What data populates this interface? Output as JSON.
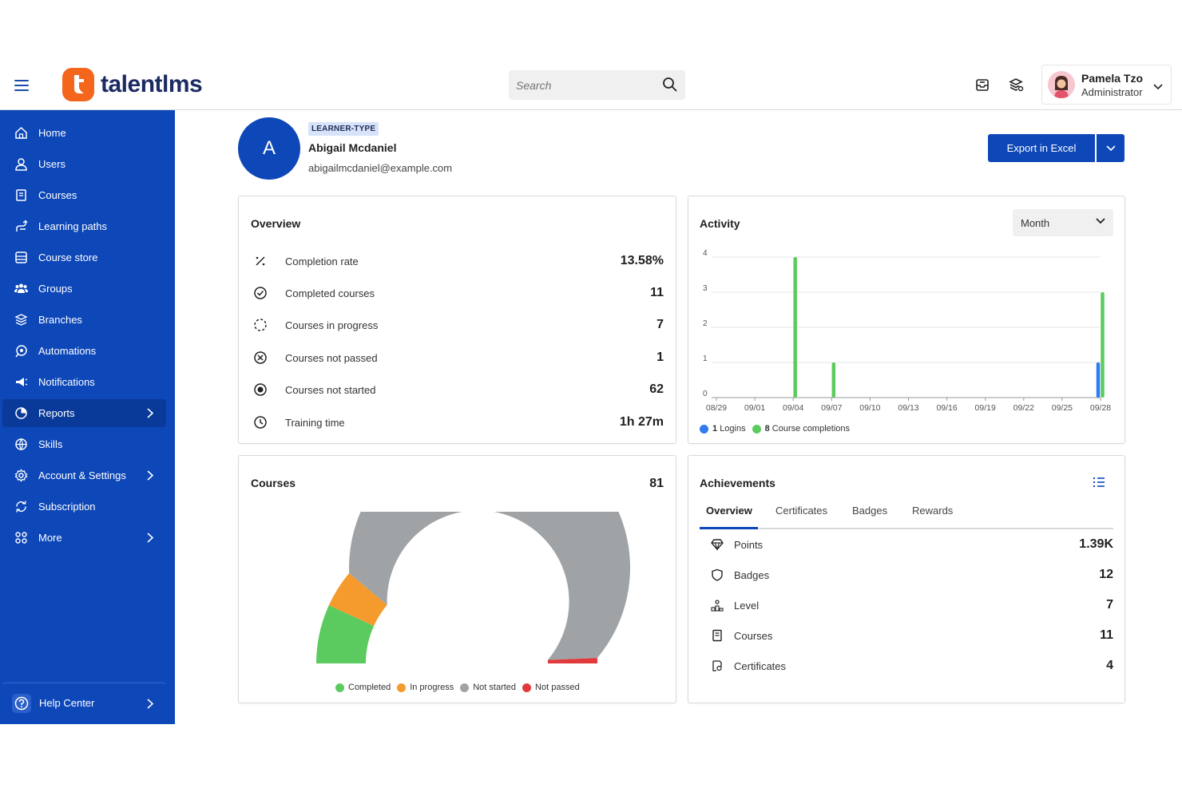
{
  "brand": {
    "name": "talentlms",
    "accent": "#0d47b8",
    "logo_color": "#f4661b"
  },
  "search": {
    "placeholder": "Search"
  },
  "user": {
    "name": "Pamela Tzo",
    "role": "Administrator"
  },
  "sidebar": {
    "items": [
      {
        "label": "Home",
        "icon": "home-icon"
      },
      {
        "label": "Users",
        "icon": "user-icon"
      },
      {
        "label": "Courses",
        "icon": "book-icon"
      },
      {
        "label": "Learning paths",
        "icon": "path-icon"
      },
      {
        "label": "Course store",
        "icon": "store-icon"
      },
      {
        "label": "Groups",
        "icon": "group-icon"
      },
      {
        "label": "Branches",
        "icon": "layers-icon"
      },
      {
        "label": "Automations",
        "icon": "automation-icon"
      },
      {
        "label": "Notifications",
        "icon": "megaphone-icon"
      },
      {
        "label": "Reports",
        "icon": "pie-chart-icon",
        "active": true,
        "has_children": true
      },
      {
        "label": "Skills",
        "icon": "skills-icon"
      },
      {
        "label": "Account & Settings",
        "icon": "gear-icon",
        "has_children": true
      },
      {
        "label": "Subscription",
        "icon": "subscription-icon"
      },
      {
        "label": "More",
        "icon": "grid-icon",
        "has_children": true
      }
    ],
    "help_label": "Help Center"
  },
  "profile": {
    "initial": "A",
    "type_badge": "LEARNER-TYPE",
    "name": "Abigail Mcdaniel",
    "email": "abigailmcdaniel@example.com"
  },
  "export": {
    "label": "Export in Excel"
  },
  "overview": {
    "title": "Overview",
    "rows": [
      {
        "label": "Completion rate",
        "value": "13.58%",
        "icon": "percent-icon"
      },
      {
        "label": "Completed courses",
        "value": "11",
        "icon": "check-circle-icon"
      },
      {
        "label": "Courses in progress",
        "value": "7",
        "icon": "dashed-circle-icon"
      },
      {
        "label": "Courses not passed",
        "value": "1",
        "icon": "x-circle-icon"
      },
      {
        "label": "Courses not started",
        "value": "62",
        "icon": "dot-circle-icon"
      },
      {
        "label": "Training time",
        "value": "1h 27m",
        "icon": "clock-icon"
      }
    ]
  },
  "activity": {
    "title": "Activity",
    "period": "Month",
    "legend": [
      {
        "count": "1",
        "label": "Logins",
        "color": "#2f7bef"
      },
      {
        "count": "8",
        "label": "Course completions",
        "color": "#5ccb5f"
      }
    ]
  },
  "courses_card": {
    "title": "Courses",
    "total": "81",
    "legend": [
      {
        "label": "Completed",
        "color": "#5ccb5f"
      },
      {
        "label": "In progress",
        "color": "#f59a2c"
      },
      {
        "label": "Not started",
        "color": "#a0a3a6"
      },
      {
        "label": "Not passed",
        "color": "#e03a3a"
      }
    ]
  },
  "achievements": {
    "title": "Achievements",
    "tabs": [
      "Overview",
      "Certificates",
      "Badges",
      "Rewards"
    ],
    "rows": [
      {
        "label": "Points",
        "value": "1.39K",
        "icon": "diamond-icon"
      },
      {
        "label": "Badges",
        "value": "12",
        "icon": "shield-icon"
      },
      {
        "label": "Level",
        "value": "7",
        "icon": "level-icon"
      },
      {
        "label": "Courses",
        "value": "11",
        "icon": "book-icon"
      },
      {
        "label": "Certificates",
        "value": "4",
        "icon": "certificate-icon"
      }
    ]
  },
  "chart_data": [
    {
      "type": "bar",
      "title": "Activity",
      "categories": [
        "08/29",
        "08/30",
        "08/31",
        "09/01",
        "09/02",
        "09/03",
        "09/04",
        "09/05",
        "09/06",
        "09/07",
        "09/08",
        "09/09",
        "09/10",
        "09/11",
        "09/12",
        "09/13",
        "09/14",
        "09/15",
        "09/16",
        "09/17",
        "09/18",
        "09/19",
        "09/20",
        "09/21",
        "09/22",
        "09/23",
        "09/24",
        "09/25",
        "09/26",
        "09/27",
        "09/28"
      ],
      "tick_labels": [
        "08/29",
        "09/01",
        "09/04",
        "09/07",
        "09/10",
        "09/13",
        "09/16",
        "09/19",
        "09/22",
        "09/25",
        "09/28"
      ],
      "series": [
        {
          "name": "Logins",
          "color": "#2f7bef",
          "values": [
            0,
            0,
            0,
            0,
            0,
            0,
            0,
            0,
            0,
            0,
            0,
            0,
            0,
            0,
            0,
            0,
            0,
            0,
            0,
            0,
            0,
            0,
            0,
            0,
            0,
            0,
            0,
            0,
            0,
            0,
            1
          ]
        },
        {
          "name": "Course completions",
          "color": "#5ccb5f",
          "values": [
            0,
            0,
            0,
            0,
            0,
            0,
            4,
            0,
            0,
            1,
            0,
            0,
            0,
            0,
            0,
            0,
            0,
            0,
            0,
            0,
            0,
            0,
            0,
            0,
            0,
            0,
            0,
            0,
            0,
            0,
            3
          ]
        }
      ],
      "ylim": [
        0,
        4
      ],
      "yticks": [
        0,
        1,
        2,
        3,
        4
      ],
      "grid": true,
      "legend": "bottom-left"
    },
    {
      "type": "pie",
      "title": "Courses",
      "categories": [
        "Completed",
        "In progress",
        "Not started",
        "Not passed"
      ],
      "values": [
        11,
        7,
        62,
        1
      ],
      "colors": [
        "#5ccb5f",
        "#f59a2c",
        "#a0a3a6",
        "#e03a3a"
      ],
      "legend": "bottom"
    }
  ]
}
